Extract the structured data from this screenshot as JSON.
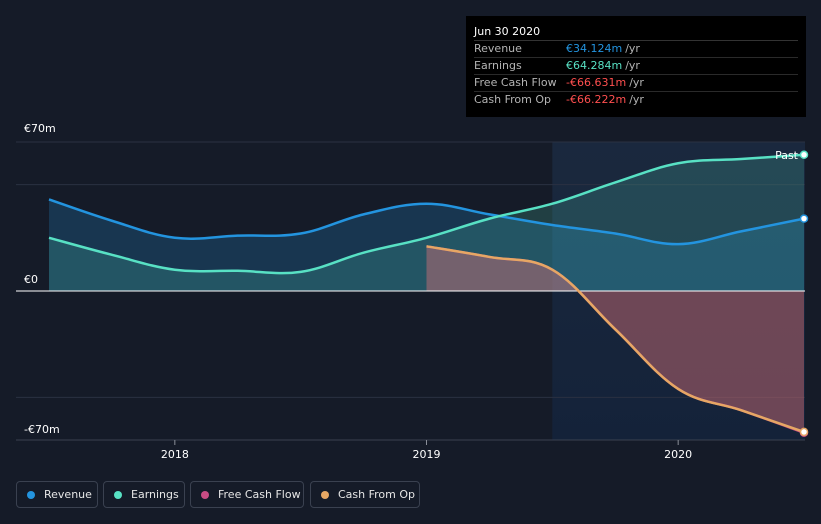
{
  "tooltip": {
    "date": "Jun 30 2020",
    "rows": [
      {
        "label": "Revenue",
        "value": "€34.124m",
        "unit": "/yr",
        "color": "#2394df"
      },
      {
        "label": "Earnings",
        "value": "€64.284m",
        "unit": "/yr",
        "color": "#58e1c4"
      },
      {
        "label": "Free Cash Flow",
        "value": "-€66.631m",
        "unit": "/yr",
        "color": "#ff4f4f"
      },
      {
        "label": "Cash From Op",
        "value": "-€66.222m",
        "unit": "/yr",
        "color": "#ff4f4f"
      }
    ]
  },
  "past_label": "Past",
  "legend": [
    {
      "label": "Revenue",
      "color": "#2394df"
    },
    {
      "label": "Earnings",
      "color": "#58e1c4"
    },
    {
      "label": "Free Cash Flow",
      "color": "#c84c84"
    },
    {
      "label": "Cash From Op",
      "color": "#e6a764"
    }
  ],
  "chart_data": {
    "type": "line",
    "ylim": [
      -70,
      70
    ],
    "yticks": [
      {
        "value": 70,
        "label": "€70m"
      },
      {
        "value": 0,
        "label": "€0"
      },
      {
        "value": -70,
        "label": "-€70m"
      }
    ],
    "xticks": [
      {
        "value": 2018.0,
        "label": "2018"
      },
      {
        "value": 2019.0,
        "label": "2019"
      },
      {
        "value": 2020.0,
        "label": "2020"
      }
    ],
    "past_start": 2019.5,
    "grid": true,
    "series": [
      {
        "name": "Revenue",
        "color": "#2394df",
        "x": [
          2017.5,
          2017.75,
          2018.0,
          2018.25,
          2018.5,
          2018.75,
          2019.0,
          2019.25,
          2019.5,
          2019.75,
          2020.0,
          2020.25,
          2020.5
        ],
        "y": [
          43,
          33,
          25,
          26,
          27,
          36,
          41,
          36,
          31,
          27,
          22,
          28,
          34
        ]
      },
      {
        "name": "Earnings",
        "color": "#58e1c4",
        "x": [
          2017.5,
          2017.75,
          2018.0,
          2018.25,
          2018.5,
          2018.75,
          2019.0,
          2019.25,
          2019.5,
          2019.75,
          2020.0,
          2020.25,
          2020.5
        ],
        "y": [
          25,
          17,
          10,
          9.5,
          9,
          18,
          25,
          34,
          41,
          51,
          60,
          62,
          64
        ]
      },
      {
        "name": "Free Cash Flow",
        "color": "#c84c84",
        "x": [
          2019.0,
          2019.25,
          2019.5,
          2019.75,
          2020.0,
          2020.25,
          2020.5
        ],
        "y": [
          21,
          16,
          10,
          -18,
          -46,
          -56,
          -66.6
        ]
      },
      {
        "name": "Cash From Op",
        "color": "#e6a764",
        "x": [
          2019.0,
          2019.25,
          2019.5,
          2019.75,
          2020.0,
          2020.25,
          2020.5
        ],
        "y": [
          21,
          16,
          10,
          -18,
          -46,
          -56,
          -66.2
        ]
      }
    ]
  }
}
